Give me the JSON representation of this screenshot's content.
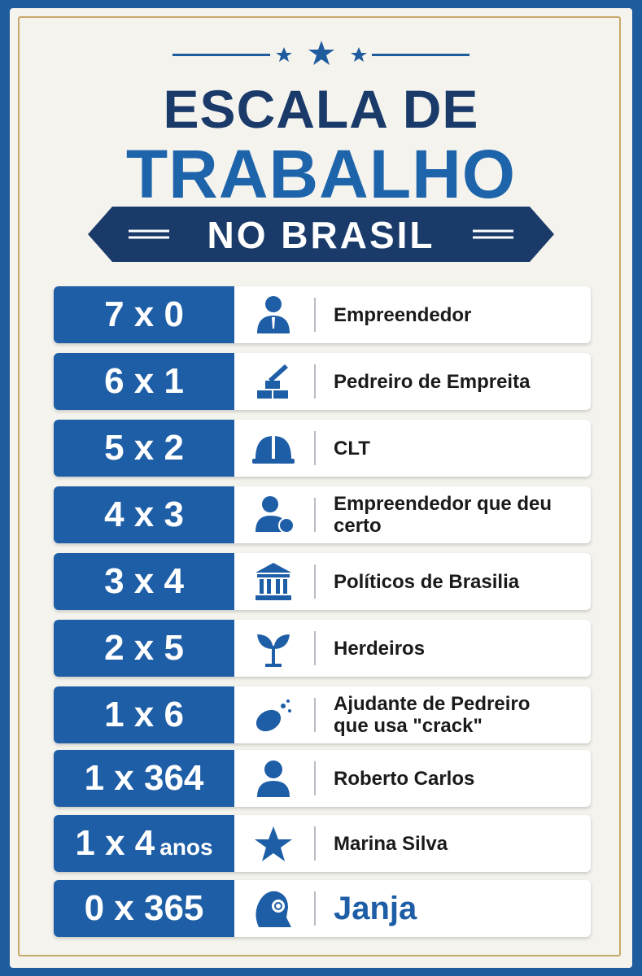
{
  "header": {
    "title_line1": "ESCALA DE",
    "title_line2": "TRABALHO",
    "ribbon": "NO BRASIL"
  },
  "rows": [
    {
      "scale": "7 x 0",
      "label": [
        "Empreendedor"
      ]
    },
    {
      "scale": "6 x 1",
      "label": [
        "Pedreiro de Empreita"
      ]
    },
    {
      "scale": "5 x 2",
      "label": [
        "CLT"
      ]
    },
    {
      "scale": "4 x 3",
      "label": [
        "Empreendedor que deu certo"
      ]
    },
    {
      "scale": "3 x 4",
      "label": [
        "Políticos de Brasilia"
      ]
    },
    {
      "scale": "2 x 5",
      "label": [
        "Herdeiros"
      ]
    },
    {
      "scale": "1 x 6",
      "label": [
        "Ajudante de Pedreiro",
        "que usa \"crack\""
      ]
    },
    {
      "scale": "1 x 364",
      "label": [
        "Roberto Carlos"
      ]
    },
    {
      "scale": "1 x 4",
      "scale_suffix": "anos",
      "label": [
        "Marina Silva"
      ]
    },
    {
      "scale": "0 x 365",
      "label": [
        "Janja"
      ]
    }
  ]
}
